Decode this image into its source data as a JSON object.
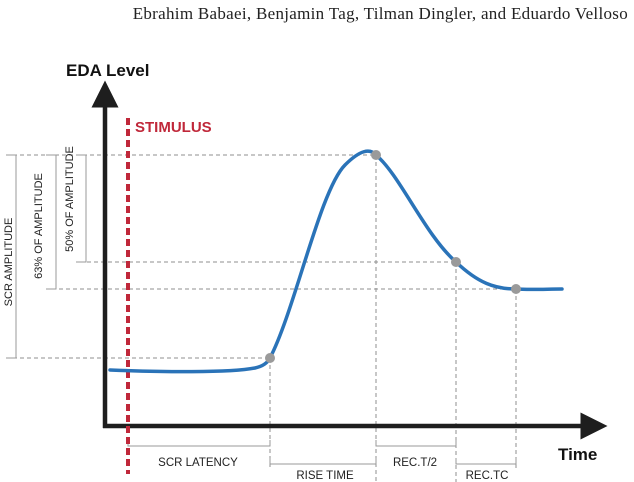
{
  "header": {
    "authors": "Ebrahim Babaei, Benjamin Tag, Tilman Dingler, and Eduardo Velloso"
  },
  "diagram": {
    "y_axis_title": "EDA Level",
    "x_axis_title": "Time",
    "stimulus_label": "STIMULUS",
    "amplitude_labels": {
      "scr_amplitude": "SCR AMPLITUDE",
      "sixty_three_percent": "63% OF AMPLITUDE",
      "fifty_percent": "50% OF AMPLITUDE"
    },
    "interval_labels": {
      "scr_latency": "SCR LATENCY",
      "rise_time": "RISE TIME",
      "rec_half": "REC.T/2",
      "rec_tc": "REC.TC"
    },
    "colors": {
      "curve": "#2a73b8",
      "stimulus": "#c0283a",
      "axis": "#1e1e1e",
      "marker": "#9a9a9a"
    }
  }
}
